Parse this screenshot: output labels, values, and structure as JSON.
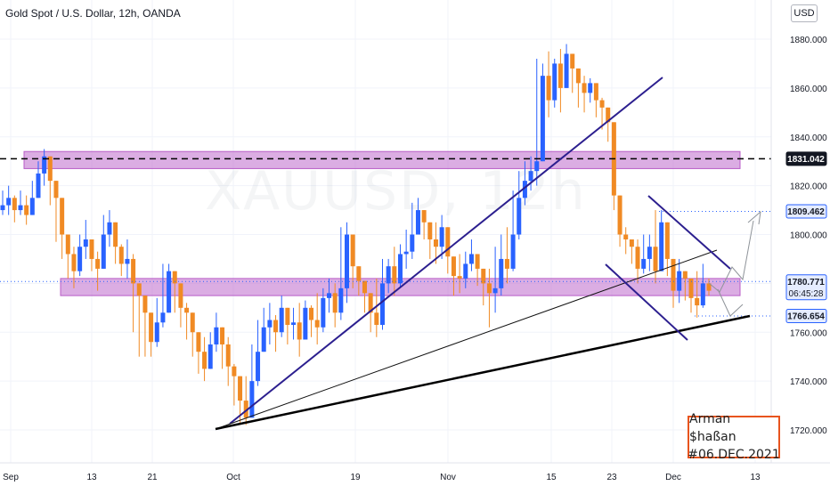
{
  "header": {
    "title": "Gold Spot / U.S. Dollar, 12h, OANDA",
    "currency": "USD"
  },
  "watermark": "XAUUSD, 12h",
  "signature": {
    "line1": "Arman $haßan",
    "line2": "#06.DEC.2021"
  },
  "colors": {
    "up": "#2962ff",
    "down": "#f08a24",
    "zone": "#b85cc7",
    "trend_blue": "#2c1f8f",
    "trend_black": "#000000",
    "signature_border": "#e8541e"
  },
  "chart_data": {
    "type": "candlestick",
    "title": "Gold Spot / U.S. Dollar, 12h, OANDA",
    "ylim": [
      1705,
      1890
    ],
    "y_ticks": [
      1720,
      1740,
      1760,
      1780,
      1800,
      1820,
      1840,
      1860,
      1880
    ],
    "y_tick_labels": [
      "1720.000",
      "1740.000",
      "1760.000",
      "1780.000",
      "1800.000",
      "1820.000",
      "1840.000",
      "1860.000",
      "1880.000"
    ],
    "x_tick_labels": [
      "Sep",
      "13",
      "21",
      "Oct",
      "19",
      "Nov",
      "15",
      "23",
      "Dec",
      "13"
    ],
    "price_labels": [
      {
        "value": 1831.042,
        "text": "1831.042",
        "style": "dark"
      },
      {
        "value": 1809.462,
        "text": "1809.462",
        "style": "blue"
      },
      {
        "value": 1780.771,
        "text": "1780.771",
        "style": "blue",
        "sub": "06:45:28"
      },
      {
        "value": 1766.654,
        "text": "1766.654",
        "style": "blue"
      }
    ],
    "zones": [
      {
        "from": 1827,
        "to": 1834
      },
      {
        "from": 1775,
        "to": 1782
      }
    ],
    "closes": [
      1812,
      1815,
      1810,
      1812,
      1808,
      1815,
      1825,
      1832,
      1822,
      1815,
      1800,
      1792,
      1785,
      1795,
      1798,
      1790,
      1786,
      1800,
      1805,
      1795,
      1788,
      1790,
      1780,
      1775,
      1768,
      1756,
      1764,
      1768,
      1785,
      1780,
      1770,
      1768,
      1760,
      1752,
      1745,
      1755,
      1762,
      1755,
      1746,
      1742,
      1732,
      1725,
      1740,
      1752,
      1762,
      1765,
      1760,
      1770,
      1763,
      1764,
      1757,
      1770,
      1765,
      1762,
      1774,
      1776,
      1768,
      1778,
      1800,
      1787,
      1781,
      1776,
      1768,
      1763,
      1780,
      1787,
      1780,
      1792,
      1793,
      1800,
      1810,
      1805,
      1798,
      1795,
      1803,
      1791,
      1783,
      1782,
      1788,
      1792,
      1786,
      1780,
      1776,
      1778,
      1790,
      1786,
      1800,
      1815,
      1822,
      1826,
      1830,
      1865,
      1855,
      1870,
      1860,
      1874,
      1868,
      1862,
      1858,
      1862,
      1855,
      1852,
      1846,
      1816,
      1800,
      1798,
      1795,
      1786,
      1790,
      1795,
      1785,
      1805,
      1790,
      1777,
      1785,
      1782,
      1774,
      1771,
      1780,
      1777
    ],
    "lows": [
      1808,
      1808,
      1805,
      1808,
      1804,
      1808,
      1815,
      1820,
      1812,
      1797,
      1790,
      1782,
      1778,
      1783,
      1790,
      1785,
      1777,
      1787,
      1795,
      1788,
      1783,
      1782,
      1760,
      1750,
      1750,
      1750,
      1754,
      1762,
      1768,
      1768,
      1762,
      1757,
      1750,
      1743,
      1740,
      1746,
      1752,
      1745,
      1738,
      1730,
      1722,
      1722,
      1728,
      1738,
      1752,
      1755,
      1752,
      1758,
      1755,
      1757,
      1750,
      1757,
      1758,
      1755,
      1760,
      1768,
      1762,
      1765,
      1772,
      1778,
      1775,
      1768,
      1760,
      1758,
      1761,
      1776,
      1775,
      1778,
      1786,
      1790,
      1800,
      1798,
      1790,
      1788,
      1790,
      1784,
      1775,
      1776,
      1778,
      1785,
      1779,
      1771,
      1762,
      1768,
      1775,
      1780,
      1785,
      1798,
      1812,
      1818,
      1820,
      1832,
      1848,
      1852,
      1850,
      1860,
      1858,
      1852,
      1850,
      1854,
      1848,
      1843,
      1838,
      1810,
      1795,
      1792,
      1788,
      1780,
      1784,
      1785,
      1780,
      1788,
      1783,
      1770,
      1772,
      1773,
      1768,
      1766,
      1770,
      1775
    ],
    "highs": [
      1818,
      1820,
      1816,
      1818,
      1816,
      1822,
      1830,
      1835,
      1830,
      1822,
      1806,
      1798,
      1795,
      1800,
      1806,
      1798,
      1793,
      1808,
      1810,
      1803,
      1796,
      1798,
      1792,
      1778,
      1770,
      1768,
      1774,
      1788,
      1788,
      1785,
      1774,
      1772,
      1765,
      1757,
      1758,
      1760,
      1768,
      1762,
      1758,
      1747,
      1736,
      1742,
      1755,
      1765,
      1770,
      1772,
      1767,
      1775,
      1770,
      1770,
      1772,
      1773,
      1771,
      1776,
      1778,
      1782,
      1780,
      1803,
      1805,
      1795,
      1786,
      1780,
      1773,
      1782,
      1790,
      1790,
      1795,
      1796,
      1802,
      1813,
      1815,
      1810,
      1803,
      1805,
      1808,
      1796,
      1788,
      1792,
      1793,
      1798,
      1792,
      1785,
      1786,
      1795,
      1800,
      1803,
      1818,
      1826,
      1830,
      1832,
      1872,
      1870,
      1875,
      1872,
      1876,
      1878,
      1870,
      1868,
      1865,
      1864,
      1860,
      1856,
      1850,
      1820,
      1808,
      1803,
      1798,
      1798,
      1800,
      1800,
      1810,
      1810,
      1800,
      1790,
      1790,
      1785,
      1780,
      1785,
      1788,
      1782
    ]
  }
}
